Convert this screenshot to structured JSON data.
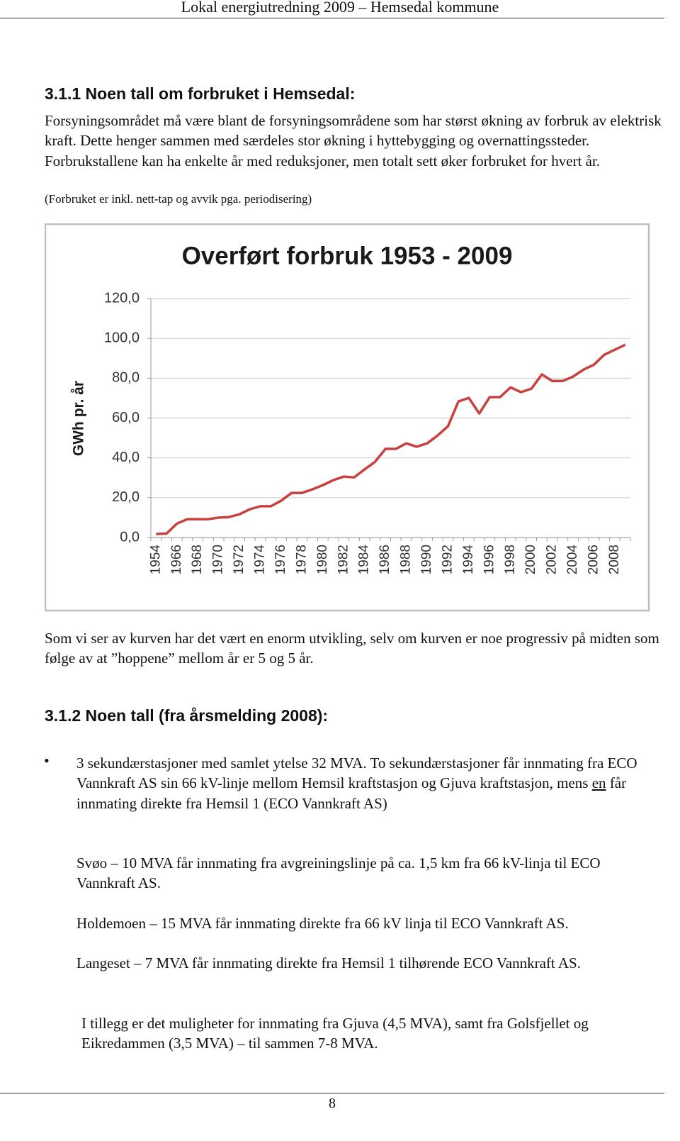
{
  "header": {
    "title": "Lokal energiutredning 2009 – Hemsedal kommune"
  },
  "section1": {
    "heading": "3.1.1  Noen tall om forbruket i Hemsedal:",
    "paragraph": "Forsyningsområdet må være blant de forsyningsområdene som har størst økning av forbruk av elektrisk kraft. Dette henger sammen med særdeles stor økning i hyttebygging og overnattingssteder.  Forbrukstallene kan ha enkelte år med reduksjoner, men totalt sett øker forbruket for hvert år.",
    "note": "(Forbruket er inkl. nett-tap og avvik pga. periodisering)"
  },
  "chart_data": {
    "type": "line",
    "title": "Overført forbruk 1953 - 2009",
    "y_label": "GWh pr. år",
    "categories": [
      "1954",
      null,
      "1966",
      null,
      "1968",
      null,
      "1970",
      null,
      "1972",
      null,
      "1974",
      null,
      "1976",
      null,
      "1978",
      null,
      "1980",
      null,
      "1982",
      null,
      "1984",
      null,
      "1986",
      null,
      "1988",
      null,
      "1990",
      null,
      "1992",
      null,
      "1994",
      null,
      "1996",
      null,
      "1998",
      null,
      "2000",
      null,
      "2002",
      null,
      "2004",
      null,
      "2006",
      null,
      "2008",
      null
    ],
    "values": [
      1.8,
      2,
      7,
      9.2,
      9.2,
      9.2,
      10,
      10.3,
      11.7,
      14.2,
      15.7,
      15.7,
      18.5,
      22.4,
      22.4,
      24.2,
      26.3,
      28.8,
      30.6,
      30.2,
      34.2,
      38,
      44.5,
      44.5,
      47.3,
      45.6,
      47.3,
      51.2,
      55.9,
      68.3,
      70.1,
      62.3,
      70.5,
      70.5,
      75.4,
      73,
      74.7,
      81.9,
      78.6,
      78.6,
      80.8,
      84.3,
      86.8,
      91.8,
      94.3,
      96.8
    ],
    "color": "#c8413e",
    "ylim": [
      0,
      120
    ],
    "yticks": [
      {
        "value": 0,
        "label": "0,0"
      },
      {
        "value": 20,
        "label": "20,0"
      },
      {
        "value": 40,
        "label": "40,0"
      },
      {
        "value": 60,
        "label": "60,0"
      },
      {
        "value": 80,
        "label": "80,0"
      },
      {
        "value": 100,
        "label": "100,0"
      },
      {
        "value": 120,
        "label": "120,0"
      }
    ],
    "grid": true
  },
  "paragraph2": "Som vi ser av kurven har det vært en enorm utvikling, selv om kurven er noe progressiv på midten som følge av at ”hoppene” mellom år er 5 og 5 år.",
  "section2": {
    "heading": "3.1.2  Noen tall (fra årsmelding 2008):",
    "bullet": {
      "before": "3 sekundærstasjoner med samlet ytelse 32 MVA.  To sekundærstasjoner får innmating fra ECO Vannkraft AS sin 66 kV-linje mellom Hemsil kraftstasjon og Gjuva kraftstasjon, mens ",
      "underlined": "en",
      "after": " får innmating direkte fra Hemsil 1 (ECO Vannkraft AS)"
    },
    "paragraphs": [
      "Svøo – 10 MVA får innmating fra avgreiningslinje på ca. 1,5 km fra 66 kV-linja til ECO Vannkraft AS.",
      "Holdemoen – 15 MVA får innmating direkte fra 66 kV linja til ECO Vannkraft AS.",
      "Langeset – 7 MVA får innmating direkte fra Hemsil 1 tilhørende ECO Vannkraft AS.",
      "I tillegg er det muligheter for innmating fra Gjuva (4,5 MVA), samt fra Golsfjellet og Eikredammen (3,5 MVA) – til sammen 7-8 MVA."
    ]
  },
  "footer": {
    "page": "8"
  }
}
